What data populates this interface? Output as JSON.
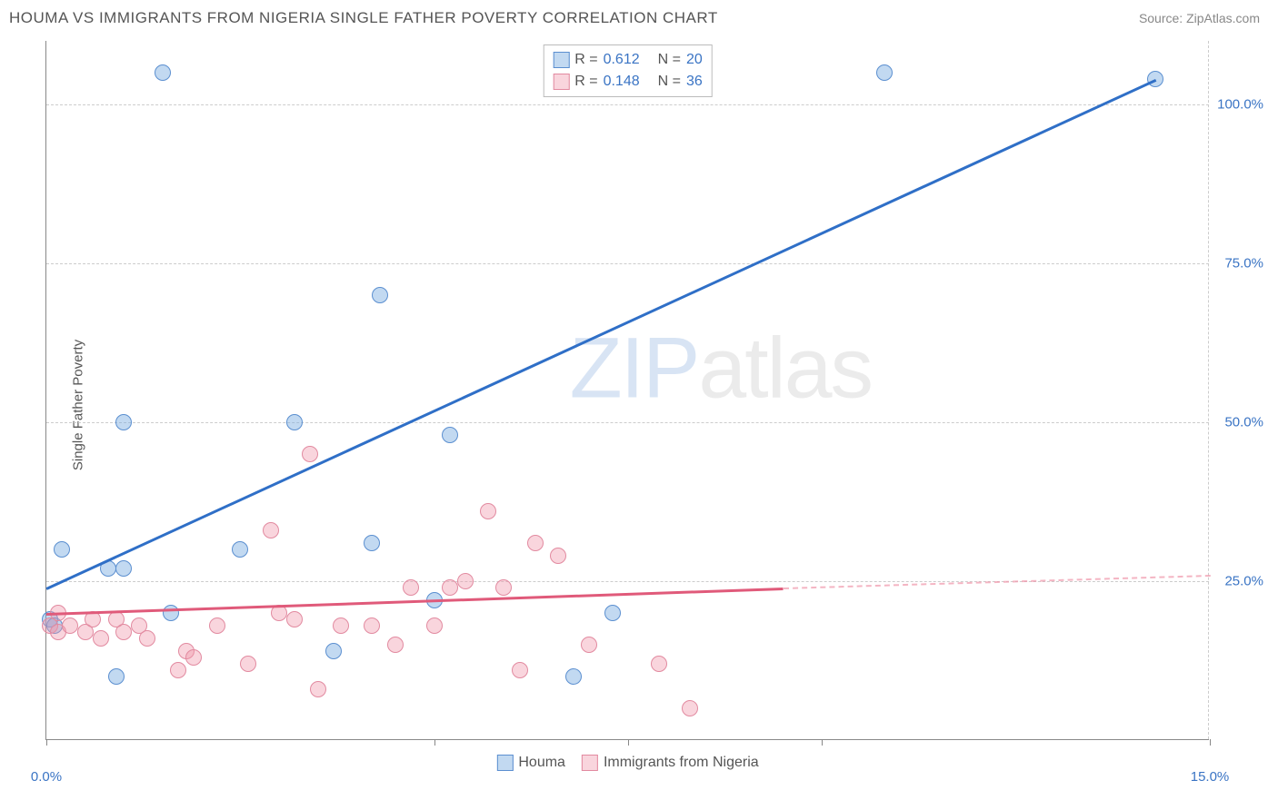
{
  "title": "HOUMA VS IMMIGRANTS FROM NIGERIA SINGLE FATHER POVERTY CORRELATION CHART",
  "source": "Source: ZipAtlas.com",
  "y_axis_title": "Single Father Poverty",
  "watermark": {
    "part1": "ZIP",
    "part2": "atlas"
  },
  "chart": {
    "type": "scatter",
    "xlim": [
      0,
      15
    ],
    "ylim": [
      0,
      110
    ],
    "x_ticks": [
      0,
      5,
      7.5,
      10,
      15
    ],
    "x_tick_labels": {
      "0": "0.0%",
      "15": "15.0%"
    },
    "x_label_color": "#3a74c4",
    "y_gridlines": [
      25,
      50,
      75,
      100
    ],
    "y_tick_labels": {
      "25": "25.0%",
      "50": "50.0%",
      "75": "75.0%",
      "100": "100.0%"
    },
    "y_label_color": "#3a74c4",
    "grid_color": "#cccccc",
    "background_color": "#ffffff",
    "point_radius": 9,
    "series": [
      {
        "name": "Houma",
        "fill": "rgba(120,170,225,0.45)",
        "stroke": "#5b8fd0",
        "trend_color": "#2f6fc7",
        "R": "0.612",
        "N": "20",
        "trend": {
          "x1": 0,
          "y1": 24,
          "x2": 14.3,
          "y2": 104
        },
        "points": [
          {
            "x": 0.05,
            "y": 19
          },
          {
            "x": 0.1,
            "y": 18
          },
          {
            "x": 0.2,
            "y": 30
          },
          {
            "x": 0.9,
            "y": 10
          },
          {
            "x": 0.8,
            "y": 27
          },
          {
            "x": 1.0,
            "y": 50
          },
          {
            "x": 1.0,
            "y": 27
          },
          {
            "x": 1.5,
            "y": 105
          },
          {
            "x": 1.6,
            "y": 20
          },
          {
            "x": 2.5,
            "y": 30
          },
          {
            "x": 3.2,
            "y": 50
          },
          {
            "x": 3.7,
            "y": 14
          },
          {
            "x": 4.2,
            "y": 31
          },
          {
            "x": 4.3,
            "y": 70
          },
          {
            "x": 5.0,
            "y": 22
          },
          {
            "x": 5.2,
            "y": 48
          },
          {
            "x": 6.8,
            "y": 10
          },
          {
            "x": 7.3,
            "y": 20
          },
          {
            "x": 10.8,
            "y": 105
          },
          {
            "x": 14.3,
            "y": 104
          }
        ]
      },
      {
        "name": "Immigrants from Nigeria",
        "fill": "rgba(240,150,170,0.40)",
        "stroke": "#e28aa0",
        "trend_color": "#e05a7a",
        "R": "0.148",
        "N": "36",
        "trend": {
          "x1": 0,
          "y1": 20,
          "x2": 9.5,
          "y2": 24
        },
        "trend_dash": {
          "x1": 9.5,
          "y1": 24,
          "x2": 15,
          "y2": 26
        },
        "points": [
          {
            "x": 0.05,
            "y": 18
          },
          {
            "x": 0.15,
            "y": 20
          },
          {
            "x": 0.15,
            "y": 17
          },
          {
            "x": 0.3,
            "y": 18
          },
          {
            "x": 0.5,
            "y": 17
          },
          {
            "x": 0.6,
            "y": 19
          },
          {
            "x": 0.7,
            "y": 16
          },
          {
            "x": 0.9,
            "y": 19
          },
          {
            "x": 1.0,
            "y": 17
          },
          {
            "x": 1.2,
            "y": 18
          },
          {
            "x": 1.3,
            "y": 16
          },
          {
            "x": 1.7,
            "y": 11
          },
          {
            "x": 1.8,
            "y": 14
          },
          {
            "x": 1.9,
            "y": 13
          },
          {
            "x": 2.2,
            "y": 18
          },
          {
            "x": 2.6,
            "y": 12
          },
          {
            "x": 2.9,
            "y": 33
          },
          {
            "x": 3.0,
            "y": 20
          },
          {
            "x": 3.2,
            "y": 19
          },
          {
            "x": 3.4,
            "y": 45
          },
          {
            "x": 3.5,
            "y": 8
          },
          {
            "x": 3.8,
            "y": 18
          },
          {
            "x": 4.2,
            "y": 18
          },
          {
            "x": 4.5,
            "y": 15
          },
          {
            "x": 4.7,
            "y": 24
          },
          {
            "x": 5.0,
            "y": 18
          },
          {
            "x": 5.2,
            "y": 24
          },
          {
            "x": 5.4,
            "y": 25
          },
          {
            "x": 5.7,
            "y": 36
          },
          {
            "x": 5.9,
            "y": 24
          },
          {
            "x": 6.1,
            "y": 11
          },
          {
            "x": 6.3,
            "y": 31
          },
          {
            "x": 6.6,
            "y": 29
          },
          {
            "x": 7.0,
            "y": 15
          },
          {
            "x": 7.9,
            "y": 12
          },
          {
            "x": 8.3,
            "y": 5
          }
        ]
      }
    ]
  },
  "legend_top": {
    "rows": [
      {
        "swatch_fill": "rgba(120,170,225,0.45)",
        "swatch_border": "#5b8fd0",
        "r_label": "R =",
        "r_val": "0.612",
        "n_label": "N =",
        "n_val": "20",
        "val_color": "#3a74c4"
      },
      {
        "swatch_fill": "rgba(240,150,170,0.40)",
        "swatch_border": "#e28aa0",
        "r_label": "R =",
        "r_val": "0.148",
        "n_label": "N =",
        "n_val": "36",
        "val_color": "#3a74c4"
      }
    ]
  },
  "legend_bottom": [
    {
      "swatch_fill": "rgba(120,170,225,0.45)",
      "swatch_border": "#5b8fd0",
      "label": "Houma"
    },
    {
      "swatch_fill": "rgba(240,150,170,0.40)",
      "swatch_border": "#e28aa0",
      "label": "Immigrants from Nigeria"
    }
  ]
}
